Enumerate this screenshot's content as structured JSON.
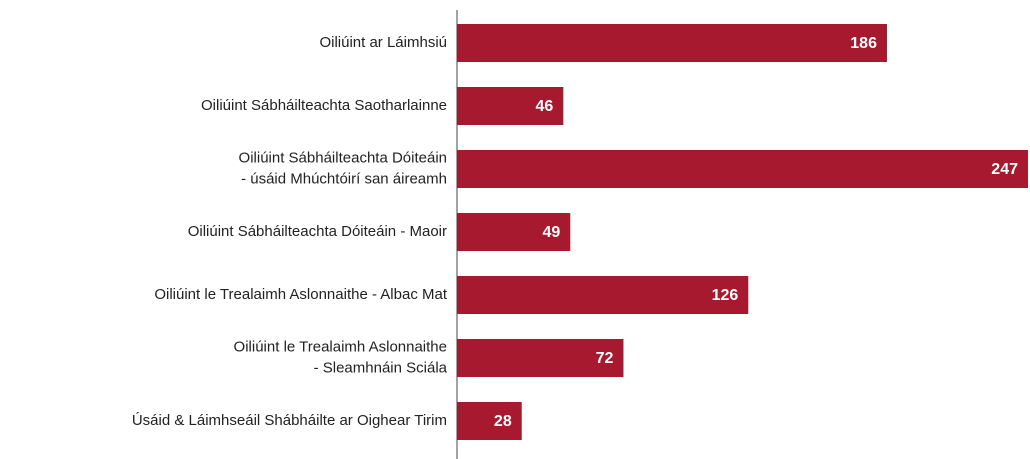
{
  "chart_data": {
    "type": "bar",
    "orientation": "horizontal",
    "categories": [
      "Oiliúint ar Láimhsiú",
      "Oiliúint Sábháilteachta Saotharlainne",
      "Oiliúint Sábháilteachta Dóiteáin\n- úsáid Mhúchtóirí san áireamh",
      "Oiliúint Sábháilteachta Dóiteáin - Maoir",
      "Oiliúint le Trealaimh Aslonnaithe - Albac Mat",
      "Oiliúint le Trealaimh Aslonnaithe\n- Sleamhnáin Sciála",
      "Úsáid & Láimhseáil Shábháilte ar Oighear Tirim"
    ],
    "values": [
      186,
      46,
      247,
      49,
      126,
      72,
      28
    ],
    "color": "#a6192e"
  }
}
